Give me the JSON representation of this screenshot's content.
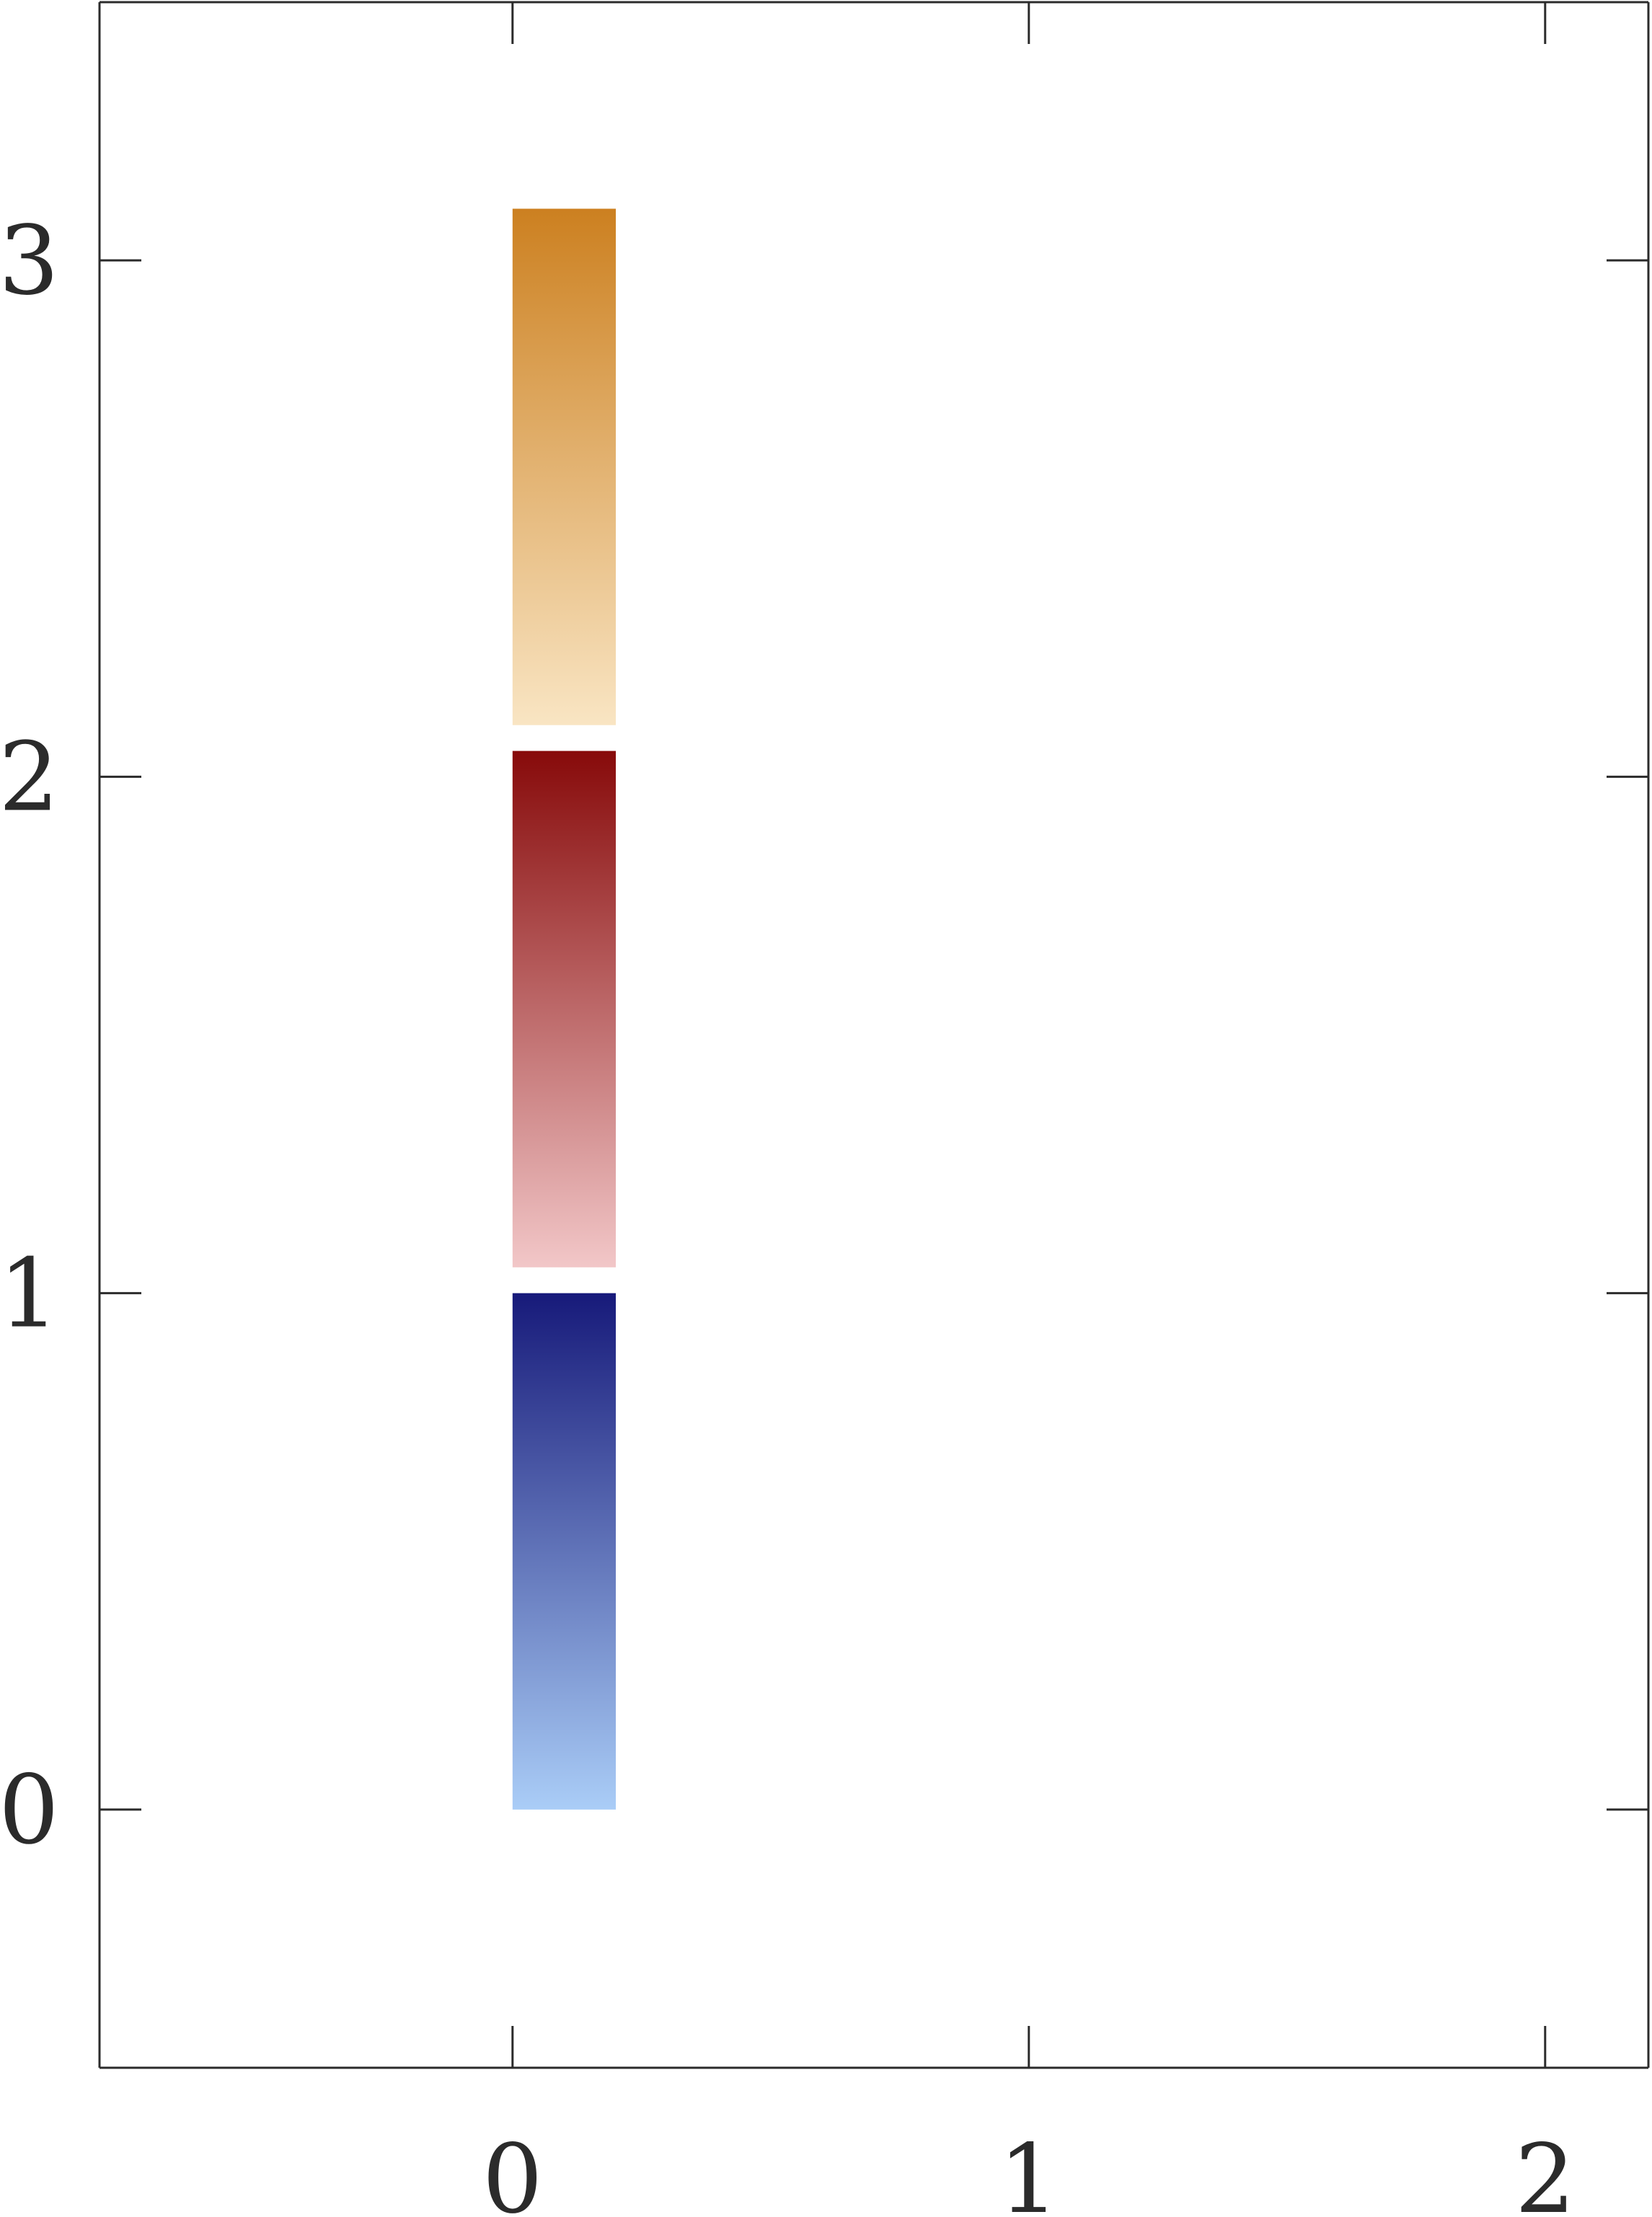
{
  "chart_data": {
    "type": "bar",
    "x": [
      0
    ],
    "xlim": [
      -0.8,
      2.2
    ],
    "ylim": [
      -0.5,
      3.5
    ],
    "xticks": [
      "0",
      "1",
      "2"
    ],
    "yticks": [
      "0",
      "1",
      "2",
      "3"
    ],
    "xlabel": "",
    "ylabel": "",
    "title": "",
    "grid": false,
    "series": [
      {
        "values": [
          1.0
        ],
        "base": 0.0,
        "gradient": [
          "#aacdf7",
          "#171a7a"
        ]
      },
      {
        "values": [
          1.0
        ],
        "base": 1.05,
        "gradient": [
          "#f2c7c8",
          "#870a0a"
        ]
      },
      {
        "values": [
          1.0
        ],
        "base": 2.1,
        "gradient": [
          "#f9e5c3",
          "#cc8020"
        ]
      }
    ],
    "colors": {
      "axis": "#2b2b2b",
      "background": "#ffffff"
    }
  }
}
